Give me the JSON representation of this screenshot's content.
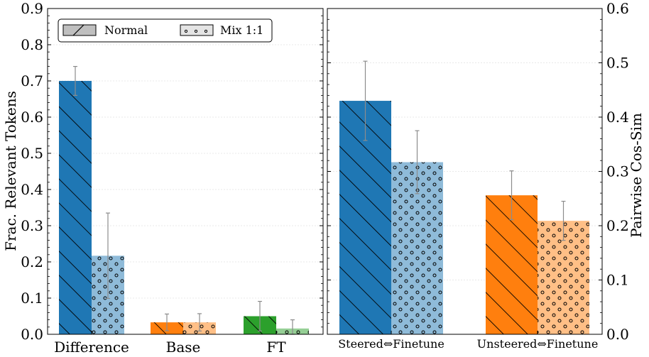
{
  "chart_data": [
    {
      "type": "bar",
      "panel": "left",
      "categories": [
        "Difference",
        "Base",
        "FT"
      ],
      "series": [
        {
          "name": "Normal",
          "pattern": "hatch",
          "values": [
            0.7,
            0.033,
            0.05
          ],
          "errors": [
            0.04,
            0.023,
            0.041
          ],
          "colors": [
            "#1f77b4",
            "#ff7f0e",
            "#2ca02c"
          ]
        },
        {
          "name": "Mix 1:1",
          "pattern": "dots",
          "values": [
            0.217,
            0.033,
            0.016
          ],
          "errors": [
            0.118,
            0.024,
            0.024
          ],
          "colors": [
            "#8fbbd9",
            "#ffbf86",
            "#95cf95"
          ]
        }
      ],
      "ylabel": "Frac. Relevant Tokens",
      "ylim": [
        0,
        0.9
      ],
      "yticks": [
        "0.0",
        "0.1",
        "0.2",
        "0.3",
        "0.4",
        "0.5",
        "0.6",
        "0.7",
        "0.8",
        "0.9"
      ],
      "grid": true,
      "legend": {
        "position": "top-left",
        "entries": [
          "Normal",
          "Mix 1:1"
        ]
      }
    },
    {
      "type": "bar",
      "panel": "right",
      "categories": [
        "Steered⇔Finetune",
        "Unsteered⇔Finetune"
      ],
      "series": [
        {
          "name": "Normal",
          "pattern": "hatch",
          "values": [
            0.43,
            0.256
          ],
          "errors": [
            0.073,
            0.045
          ],
          "colors": [
            "#1f77b4",
            "#ff7f0e"
          ]
        },
        {
          "name": "Mix 1:1",
          "pattern": "dots",
          "values": [
            0.317,
            0.209
          ],
          "errors": [
            0.058,
            0.036
          ],
          "colors": [
            "#8fbbd9",
            "#ffbf86"
          ]
        }
      ],
      "ylabel": "Pairwise Cos-Sim",
      "ylim": [
        0,
        0.6
      ],
      "yticks": [
        "0.0",
        "0.1",
        "0.2",
        "0.3",
        "0.4",
        "0.5",
        "0.6"
      ],
      "yaxis_side": "right",
      "grid": true
    }
  ]
}
